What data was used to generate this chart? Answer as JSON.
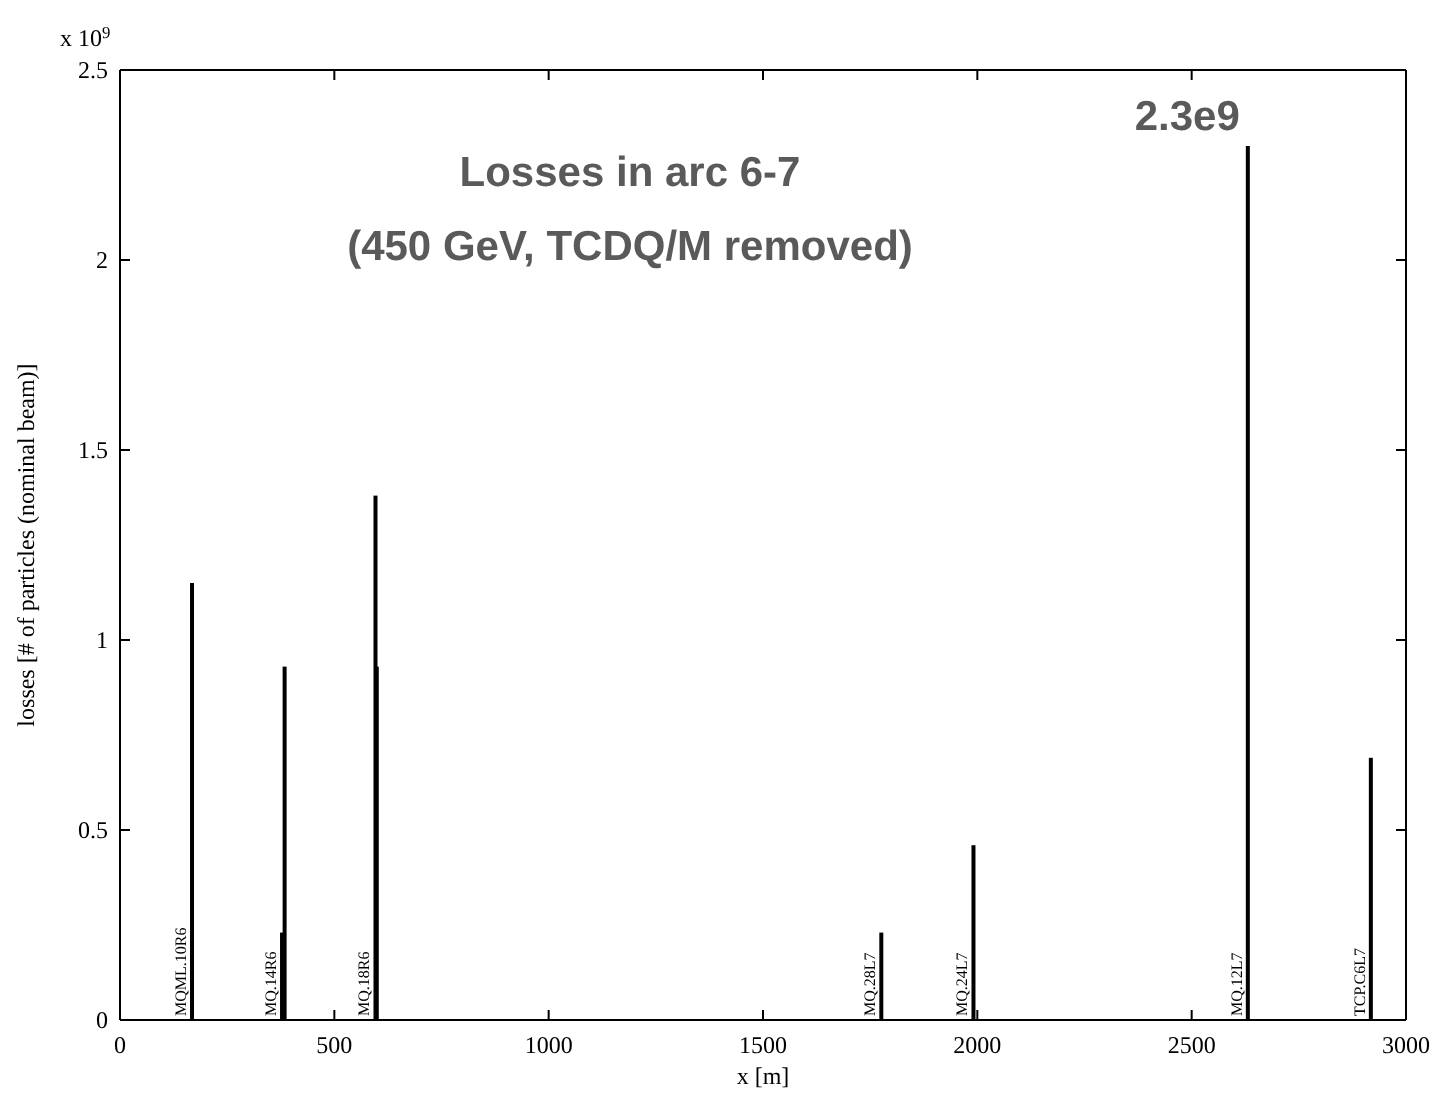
{
  "chart_data": {
    "type": "bar",
    "xlabel": "x [m]",
    "ylabel": "losses [# of particles (nominal beam)]",
    "x": [
      168,
      378,
      384,
      596,
      599,
      1776,
      1991,
      2631,
      2918
    ],
    "values": [
      1.15,
      0.23,
      0.93,
      1.38,
      0.93,
      0.23,
      0.46,
      2.3,
      0.69
    ],
    "color": "#000000",
    "xlim": [
      0,
      3000
    ],
    "xticks": [
      0,
      500,
      1000,
      1500,
      2000,
      2500,
      3000
    ],
    "ylim": [
      0,
      2.5
    ],
    "yticks": [
      0,
      0.5,
      1,
      1.5,
      2,
      2.5
    ],
    "grid": false,
    "annotations": [
      "x 10$^{9}$",
      "Losses in arc 6-7",
      "(450 GeV, TCDQ/M removed)",
      {
        "text": "2.3e9",
        "x": 2631,
        "y": 2.3
      },
      {
        "text": "MQML.10R6",
        "x": 168,
        "y": 0
      },
      {
        "text": "MQ.14R6",
        "x": 378,
        "y": 0
      },
      {
        "text": "MQ.18R6",
        "x": 596,
        "y": 0
      },
      {
        "text": "MQ.28L7",
        "x": 1776,
        "y": 0
      },
      {
        "text": "MQ.24L7",
        "x": 1991,
        "y": 0
      },
      {
        "text": "MQ.12L7",
        "x": 2631,
        "y": 0
      },
      {
        "text": "TCP.C6L7",
        "x": 2918,
        "y": 0
      }
    ]
  }
}
